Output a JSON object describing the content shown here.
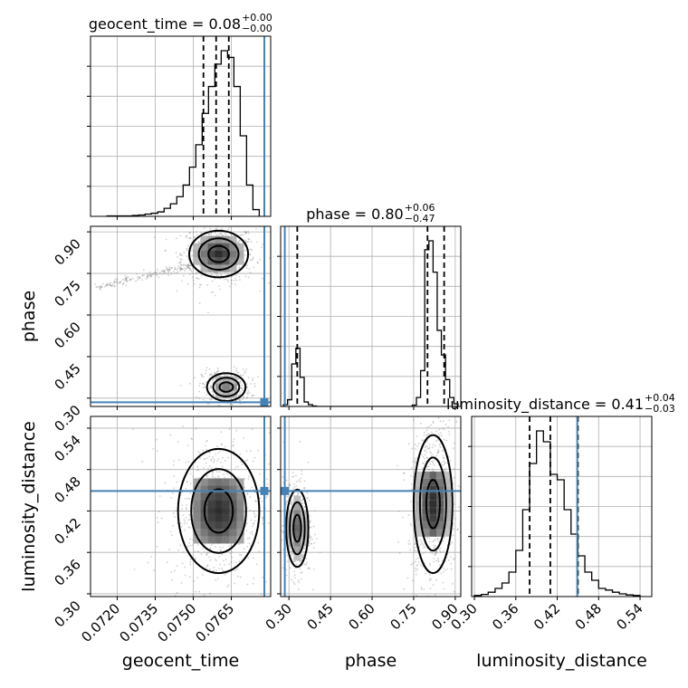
{
  "chart_data": {
    "type": "corner",
    "parameters": [
      "geocent_time",
      "phase",
      "luminosity_distance"
    ],
    "axis_labels": {
      "geocent_time": "geocent_time",
      "phase": "phase",
      "luminosity_distance": "luminosity_distance"
    },
    "ranges": {
      "geocent_time": [
        0.07095,
        0.07805
      ],
      "phase": [
        0.27,
        0.92
      ],
      "luminosity_distance": [
        0.296,
        0.557
      ]
    },
    "ticks": {
      "geocent_time": [
        "0.0720",
        "0.0735",
        "0.0750",
        "0.0765"
      ],
      "phase": [
        "0.30",
        "0.45",
        "0.60",
        "0.75",
        "0.90"
      ],
      "luminosity_distance": [
        "0.30",
        "0.36",
        "0.42",
        "0.48",
        "0.54"
      ]
    },
    "truths": {
      "geocent_time": 0.0778,
      "phase": 0.285,
      "luminosity_distance": 0.449
    },
    "truth_color": "#4682b4",
    "titles": {
      "geocent_time": {
        "main": "geocent_time = 0.08",
        "sup": "+0.00",
        "sub": "−0.00"
      },
      "phase": {
        "main": "phase = 0.80",
        "sup": "+0.06",
        "sub": "−0.47"
      },
      "luminosity_distance": {
        "main": "luminosity_distance = 0.41",
        "sup": "+0.04",
        "sub": "−0.03"
      }
    },
    "quantiles": {
      "geocent_time": [
        0.0754,
        0.0759,
        0.0764
      ],
      "phase": [
        0.33,
        0.8,
        0.86
      ],
      "luminosity_distance": [
        0.38,
        0.41,
        0.45
      ]
    },
    "histograms": {
      "geocent_time": {
        "edges": [
          0.0716,
          0.07185,
          0.0721,
          0.07235,
          0.0726,
          0.07285,
          0.0731,
          0.07335,
          0.0736,
          0.07385,
          0.0741,
          0.07435,
          0.0746,
          0.07485,
          0.0751,
          0.07535,
          0.0756,
          0.07585,
          0.0761,
          0.07635,
          0.0766,
          0.07685,
          0.0771,
          0.07735,
          0.0776
        ],
        "counts": [
          1,
          1,
          1,
          1,
          2,
          3,
          5,
          7,
          10,
          18,
          28,
          44,
          70,
          110,
          160,
          230,
          290,
          340,
          370,
          355,
          290,
          180,
          70,
          15
        ]
      },
      "phase": {
        "edges": [
          0.28,
          0.295,
          0.31,
          0.325,
          0.34,
          0.355,
          0.37,
          0.385,
          0.4,
          0.415,
          0.43,
          0.745,
          0.76,
          0.775,
          0.79,
          0.805,
          0.82,
          0.835,
          0.85,
          0.865,
          0.88,
          0.895,
          0.91
        ],
        "counts": [
          4,
          15,
          95,
          130,
          65,
          10,
          4,
          1,
          0,
          0,
          0,
          3,
          20,
          80,
          350,
          370,
          300,
          170,
          115,
          60,
          20,
          6
        ]
      },
      "luminosity_distance": {
        "edges": [
          0.3,
          0.31,
          0.32,
          0.33,
          0.34,
          0.35,
          0.36,
          0.37,
          0.38,
          0.39,
          0.4,
          0.41,
          0.42,
          0.43,
          0.44,
          0.45,
          0.46,
          0.47,
          0.48,
          0.49,
          0.5,
          0.51,
          0.52,
          0.53,
          0.54
        ],
        "counts": [
          2,
          4,
          8,
          15,
          25,
          45,
          85,
          160,
          245,
          305,
          285,
          225,
          215,
          160,
          115,
          75,
          45,
          30,
          15,
          12,
          8,
          5,
          3,
          2
        ]
      }
    },
    "density_modes": [
      {
        "x": "geocent_time",
        "y": "phase",
        "peaks": [
          {
            "cx": 0.076,
            "cy": 0.82,
            "sx": 0.00058,
            "sy": 0.042,
            "w": 1.0
          },
          {
            "cx": 0.0763,
            "cy": 0.34,
            "sx": 0.00038,
            "sy": 0.025,
            "w": 0.55
          }
        ],
        "tail": {
          "from": [
            0.0712,
            0.7
          ],
          "to": [
            0.075,
            0.78
          ]
        }
      },
      {
        "x": "geocent_time",
        "y": "luminosity_distance",
        "peaks": [
          {
            "cx": 0.076,
            "cy": 0.42,
            "sx": 0.0008,
            "sy": 0.045,
            "w": 1.0
          }
        ]
      },
      {
        "x": "phase",
        "y": "luminosity_distance",
        "peaks": [
          {
            "cx": 0.33,
            "cy": 0.395,
            "sx": 0.02,
            "sy": 0.028,
            "w": 0.7
          },
          {
            "cx": 0.82,
            "cy": 0.43,
            "sx": 0.035,
            "sy": 0.05,
            "w": 1.0
          }
        ]
      }
    ]
  }
}
